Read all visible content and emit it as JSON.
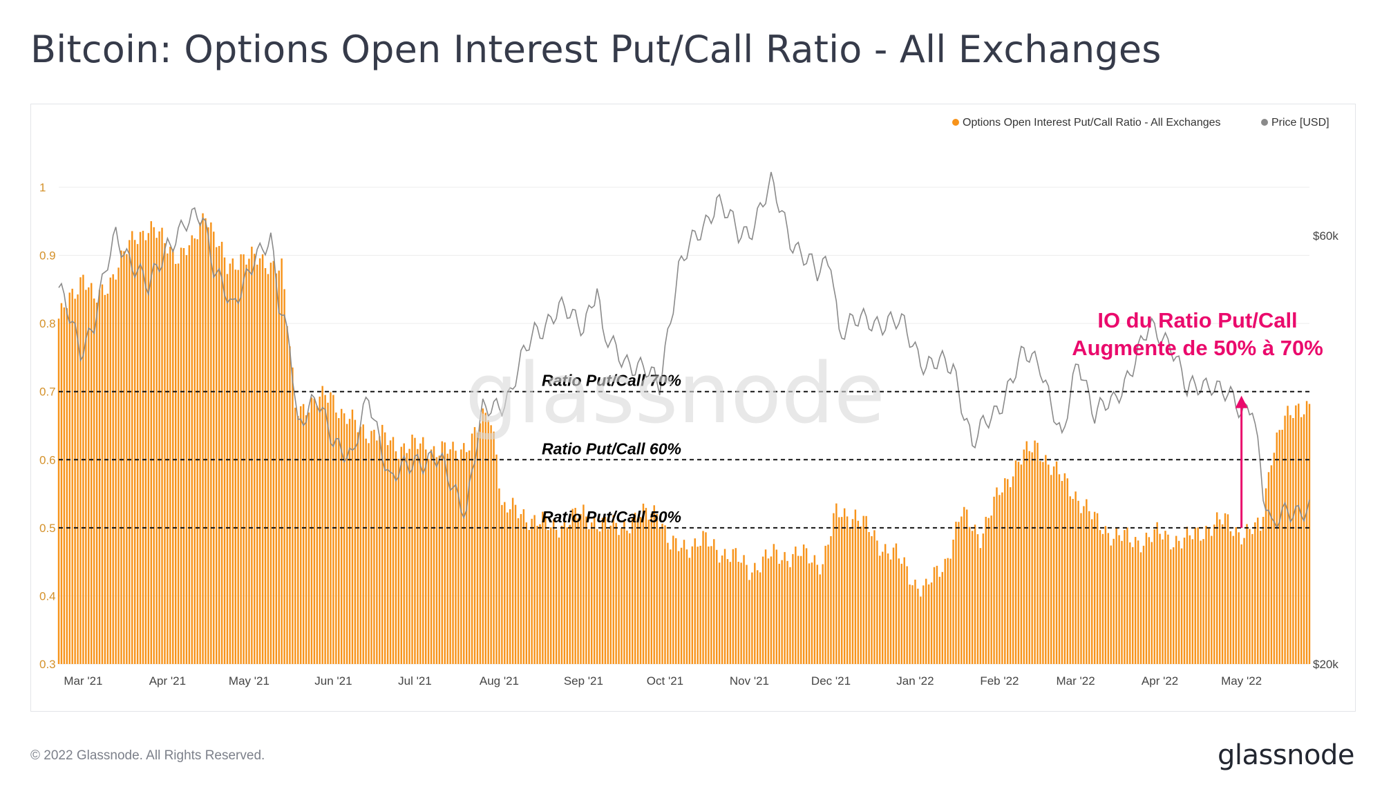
{
  "page": {
    "title": "Bitcoin: Options Open Interest Put/Call Ratio - All Exchanges",
    "copyright": "© 2022 Glassnode. All Rights Reserved.",
    "logo_text": "glassnode",
    "watermark_text": "glassnode"
  },
  "colors": {
    "bar": "#f7931a",
    "price_line": "#8a8a8a",
    "annotation": "#ea0a6c",
    "axis_left_text": "#d4912a",
    "axis_right_text": "#444444",
    "title": "#363b4a"
  },
  "chart_data": {
    "type": "bar",
    "title": "Bitcoin: Options Open Interest Put/Call Ratio - All Exchanges",
    "x_axis": {
      "ticks": [
        "Mar '21",
        "Apr '21",
        "May '21",
        "Jun '21",
        "Jul '21",
        "Aug '21",
        "Sep '21",
        "Oct '21",
        "Nov '21",
        "Dec '21",
        "Jan '22",
        "Feb '22",
        "Mar '22",
        "Apr '22",
        "May '22"
      ],
      "range": [
        "2021-02-20",
        "2022-05-26"
      ]
    },
    "y_left": {
      "label": "",
      "min": 0.3,
      "max": 1.0,
      "ticks": [
        "0.3",
        "0.4",
        "0.5",
        "0.6",
        "0.7",
        "0.8",
        "0.9",
        "1"
      ]
    },
    "y_right": {
      "label": "",
      "scale": "log",
      "min": 20000,
      "max": 60000,
      "ticks": [
        "$20k",
        "$60k"
      ]
    },
    "legend": {
      "placement": "top-right",
      "entries": [
        "Options Open Interest Put/Call Ratio - All Exchanges",
        "Price [USD]"
      ]
    },
    "grid": true,
    "series": [
      {
        "name": "Options Open Interest Put/Call Ratio - All Exchanges",
        "type": "bar",
        "axis": "left",
        "anchors": [
          [
            "2021-02-20",
            0.8
          ],
          [
            "2021-02-24",
            0.84
          ],
          [
            "2021-03-01",
            0.87
          ],
          [
            "2021-03-05",
            0.83
          ],
          [
            "2021-03-10",
            0.86
          ],
          [
            "2021-03-15",
            0.89
          ],
          [
            "2021-03-20",
            0.93
          ],
          [
            "2021-03-25",
            0.94
          ],
          [
            "2021-03-31",
            0.92
          ],
          [
            "2021-04-05",
            0.9
          ],
          [
            "2021-04-10",
            0.91
          ],
          [
            "2021-04-15",
            0.97
          ],
          [
            "2021-04-18",
            0.93
          ],
          [
            "2021-04-23",
            0.88
          ],
          [
            "2021-04-28",
            0.9
          ],
          [
            "2021-05-05",
            0.89
          ],
          [
            "2021-05-10",
            0.89
          ],
          [
            "2021-05-13",
            0.88
          ],
          [
            "2021-05-16",
            0.76
          ],
          [
            "2021-05-18",
            0.68
          ],
          [
            "2021-05-25",
            0.68
          ],
          [
            "2021-05-31",
            0.7
          ],
          [
            "2021-06-05",
            0.66
          ],
          [
            "2021-06-15",
            0.64
          ],
          [
            "2021-06-25",
            0.62
          ],
          [
            "2021-07-05",
            0.62
          ],
          [
            "2021-07-15",
            0.61
          ],
          [
            "2021-07-22",
            0.63
          ],
          [
            "2021-07-28",
            0.67
          ],
          [
            "2021-07-31",
            0.62
          ],
          [
            "2021-08-02",
            0.53
          ],
          [
            "2021-08-10",
            0.52
          ],
          [
            "2021-08-20",
            0.5
          ],
          [
            "2021-09-01",
            0.52
          ],
          [
            "2021-09-10",
            0.5
          ],
          [
            "2021-09-20",
            0.51
          ],
          [
            "2021-09-28",
            0.53
          ],
          [
            "2021-10-03",
            0.47
          ],
          [
            "2021-10-15",
            0.48
          ],
          [
            "2021-10-25",
            0.46
          ],
          [
            "2021-11-01",
            0.44
          ],
          [
            "2021-11-10",
            0.46
          ],
          [
            "2021-11-20",
            0.46
          ],
          [
            "2021-11-28",
            0.45
          ],
          [
            "2021-12-03",
            0.52
          ],
          [
            "2021-12-10",
            0.52
          ],
          [
            "2021-12-18",
            0.48
          ],
          [
            "2021-12-25",
            0.46
          ],
          [
            "2022-01-01",
            0.42
          ],
          [
            "2022-01-05",
            0.41
          ],
          [
            "2022-01-12",
            0.45
          ],
          [
            "2022-01-18",
            0.52
          ],
          [
            "2022-01-25",
            0.49
          ],
          [
            "2022-02-01",
            0.55
          ],
          [
            "2022-02-08",
            0.6
          ],
          [
            "2022-02-15",
            0.62
          ],
          [
            "2022-02-22",
            0.58
          ],
          [
            "2022-03-01",
            0.55
          ],
          [
            "2022-03-08",
            0.51
          ],
          [
            "2022-03-15",
            0.49
          ],
          [
            "2022-03-22",
            0.48
          ],
          [
            "2022-04-01",
            0.49
          ],
          [
            "2022-04-10",
            0.48
          ],
          [
            "2022-04-18",
            0.5
          ],
          [
            "2022-04-25",
            0.51
          ],
          [
            "2022-05-02",
            0.49
          ],
          [
            "2022-05-08",
            0.5
          ],
          [
            "2022-05-12",
            0.61
          ],
          [
            "2022-05-16",
            0.65
          ],
          [
            "2022-05-22",
            0.68
          ],
          [
            "2022-05-26",
            0.68
          ]
        ]
      },
      {
        "name": "Price [USD]",
        "type": "line",
        "axis": "right",
        "anchors": [
          [
            "2021-02-20",
            52000
          ],
          [
            "2021-02-28",
            45000
          ],
          [
            "2021-03-05",
            48000
          ],
          [
            "2021-03-13",
            60000
          ],
          [
            "2021-03-18",
            57000
          ],
          [
            "2021-03-25",
            52000
          ],
          [
            "2021-04-01",
            59000
          ],
          [
            "2021-04-14",
            63500
          ],
          [
            "2021-04-18",
            56000
          ],
          [
            "2021-04-25",
            49000
          ],
          [
            "2021-05-03",
            57500
          ],
          [
            "2021-05-09",
            58500
          ],
          [
            "2021-05-12",
            50000
          ],
          [
            "2021-05-16",
            46000
          ],
          [
            "2021-05-19",
            37000
          ],
          [
            "2021-05-26",
            39000
          ],
          [
            "2021-06-01",
            36000
          ],
          [
            "2021-06-08",
            33500
          ],
          [
            "2021-06-14",
            40000
          ],
          [
            "2021-06-22",
            31700
          ],
          [
            "2021-07-01",
            34000
          ],
          [
            "2021-07-10",
            33500
          ],
          [
            "2021-07-20",
            29800
          ],
          [
            "2021-07-26",
            38000
          ],
          [
            "2021-08-05",
            40000
          ],
          [
            "2021-08-14",
            47000
          ],
          [
            "2021-08-23",
            49500
          ],
          [
            "2021-09-01",
            48000
          ],
          [
            "2021-09-06",
            52500
          ],
          [
            "2021-09-08",
            46000
          ],
          [
            "2021-09-20",
            43000
          ],
          [
            "2021-09-29",
            41000
          ],
          [
            "2021-10-06",
            55000
          ],
          [
            "2021-10-15",
            61500
          ],
          [
            "2021-10-20",
            66000
          ],
          [
            "2021-10-28",
            60000
          ],
          [
            "2021-11-01",
            61000
          ],
          [
            "2021-11-09",
            68000
          ],
          [
            "2021-11-16",
            60000
          ],
          [
            "2021-11-26",
            54000
          ],
          [
            "2021-12-01",
            57000
          ],
          [
            "2021-12-04",
            47000
          ],
          [
            "2021-12-15",
            48500
          ],
          [
            "2021-12-28",
            47500
          ],
          [
            "2022-01-05",
            43000
          ],
          [
            "2022-01-15",
            43000
          ],
          [
            "2022-01-22",
            35000
          ],
          [
            "2022-01-31",
            38500
          ],
          [
            "2022-02-10",
            44000
          ],
          [
            "2022-02-16",
            43500
          ],
          [
            "2022-02-24",
            35000
          ],
          [
            "2022-03-02",
            44000
          ],
          [
            "2022-03-08",
            38000
          ],
          [
            "2022-03-15",
            39000
          ],
          [
            "2022-03-28",
            47000
          ],
          [
            "2022-04-05",
            46000
          ],
          [
            "2022-04-11",
            40000
          ],
          [
            "2022-04-20",
            41500
          ],
          [
            "2022-05-01",
            38000
          ],
          [
            "2022-05-05",
            39500
          ],
          [
            "2022-05-09",
            31000
          ],
          [
            "2022-05-12",
            28000
          ],
          [
            "2022-05-18",
            30000
          ],
          [
            "2022-05-26",
            29500
          ]
        ]
      }
    ],
    "reference_lines": [
      {
        "value": 0.7,
        "label": "Ratio Put/Call 70%"
      },
      {
        "value": 0.6,
        "label": "Ratio Put/Call 60%"
      },
      {
        "value": 0.5,
        "label": "Ratio Put/Call 50%"
      }
    ],
    "annotation": {
      "text_line1": "IO du Ratio Put/Call",
      "text_line2": "Augmente de 50% à 70%",
      "arrow_date": "2022-05-01",
      "arrow_from": 0.5,
      "arrow_to": 0.69
    }
  }
}
